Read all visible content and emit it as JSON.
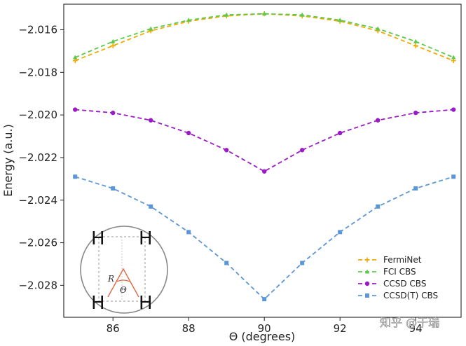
{
  "chart_data": {
    "type": "line",
    "xlabel": "Θ (degrees)",
    "ylabel": "Energy (a.u.)",
    "xlim": [
      84.7,
      95.2
    ],
    "ylim": [
      -2.0295,
      -2.0148
    ],
    "xticks": [
      86,
      88,
      90,
      92,
      94
    ],
    "xtick_labels": [
      "86",
      "88",
      "90",
      "92",
      "94"
    ],
    "yticks": [
      -2.016,
      -2.018,
      -2.02,
      -2.022,
      -2.024,
      -2.026,
      -2.028
    ],
    "ytick_labels": [
      "−2.016",
      "−2.018",
      "−2.020",
      "−2.022",
      "−2.024",
      "−2.026",
      "−2.028"
    ],
    "grid": false,
    "legend_position": "lower-right",
    "x": [
      85,
      86,
      87,
      88,
      89,
      90,
      91,
      92,
      93,
      94,
      95
    ],
    "series": [
      {
        "name": "FermiNet",
        "color": "#f2a900",
        "marker": "plus",
        "values": [
          -2.01745,
          -2.01675,
          -2.01605,
          -2.0156,
          -2.01535,
          -2.01525,
          -2.01535,
          -2.0156,
          -2.01605,
          -2.01675,
          -2.01745
        ]
      },
      {
        "name": "FCI CBS",
        "color": "#5cc94a",
        "marker": "triangle",
        "values": [
          -2.0173,
          -2.01655,
          -2.01595,
          -2.01555,
          -2.0153,
          -2.01525,
          -2.0153,
          -2.01555,
          -2.01595,
          -2.01655,
          -2.0173
        ]
      },
      {
        "name": "CCSD CBS",
        "color": "#9a1bc4",
        "marker": "circle",
        "values": [
          -2.01975,
          -2.0199,
          -2.02025,
          -2.02085,
          -2.02165,
          -2.02265,
          -2.02165,
          -2.02085,
          -2.02025,
          -2.0199,
          -2.01975
        ]
      },
      {
        "name": "CCSD(T) CBS",
        "color": "#5b96d6",
        "marker": "square",
        "values": [
          -2.0229,
          -2.02345,
          -2.0243,
          -2.0255,
          -2.02695,
          -2.02865,
          -2.02695,
          -2.0255,
          -2.0243,
          -2.02345,
          -2.0229
        ]
      }
    ]
  },
  "inset": {
    "atom_labels": [
      "H",
      "H",
      "H",
      "H"
    ],
    "r_label": "R",
    "theta_label": "Θ"
  },
  "watermark": "知乎 @于瑞"
}
